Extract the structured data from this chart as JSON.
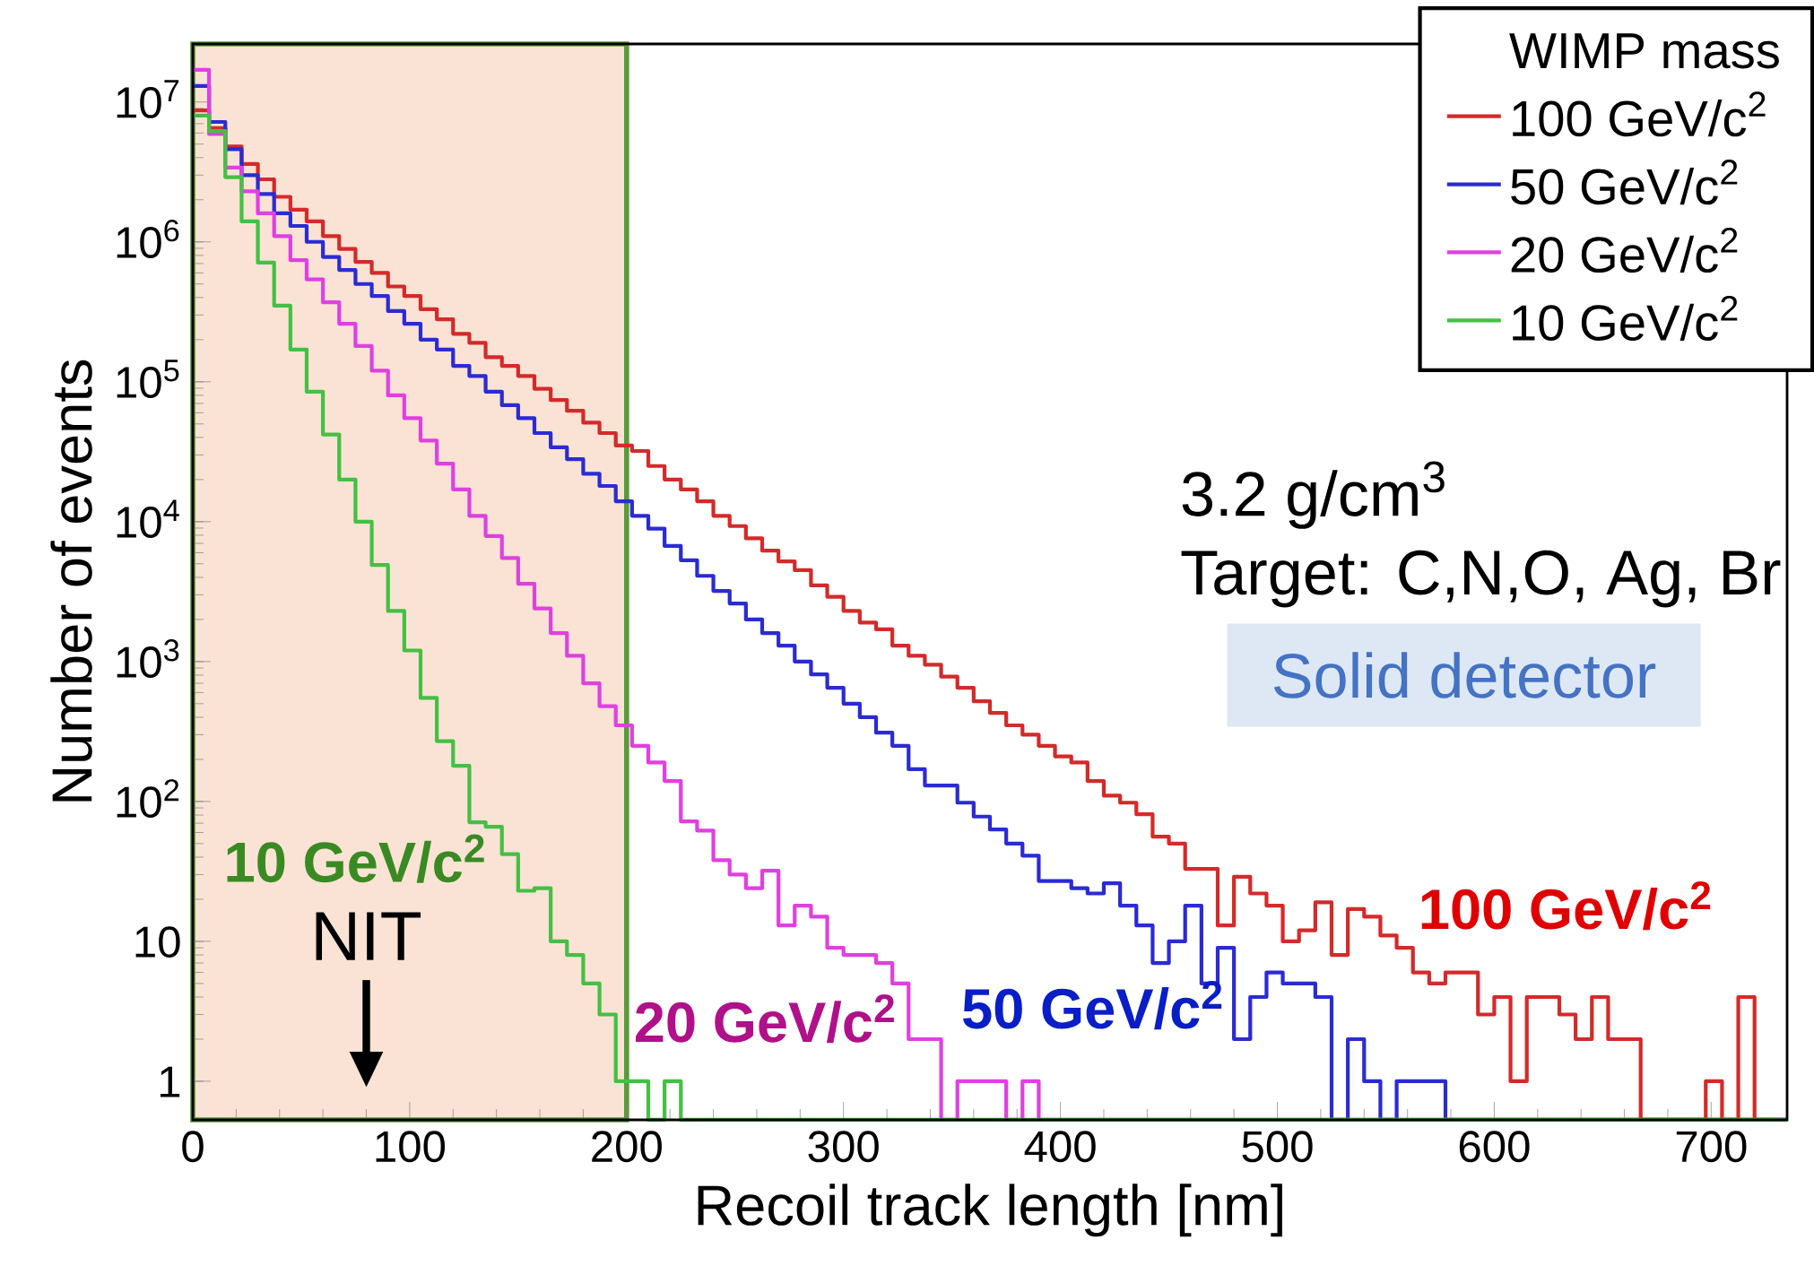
{
  "chart_data": {
    "type": "histogram",
    "xlabel": "Recoil track length [nm]",
    "ylabel": "Number of events",
    "legend_title": "WIMP mass",
    "legend": "top right",
    "log": "y",
    "xlim": [
      0,
      735
    ],
    "ylim": [
      0.53,
      26000000
    ],
    "xticks": [
      0,
      100,
      200,
      300,
      400,
      500,
      600,
      700
    ],
    "yticks": [
      1,
      10,
      {
        "value": 100,
        "label": "10$^{2}$"
      },
      {
        "value": 1000,
        "label": "10$^{3}$"
      },
      {
        "value": 10000,
        "label": "10$^{4}$"
      },
      {
        "value": 100000,
        "label": "10$^{5}$"
      },
      {
        "value": 1000000,
        "label": "10$^{6}$"
      },
      {
        "value": 10000000,
        "label": "10$^{7}$"
      }
    ],
    "bins": [
      0,
      7.5,
      15,
      22.5,
      30,
      37.5,
      45,
      52.5,
      60,
      67.5,
      75,
      82.5,
      90,
      97.5,
      105,
      112.5,
      120,
      127.5,
      135,
      142.5,
      150,
      157.5,
      165,
      172.5,
      180,
      187.5,
      195,
      202.5,
      210,
      217.5,
      225,
      232.5,
      240,
      247.5,
      255,
      262.5,
      270,
      277.5,
      285,
      292.5,
      300,
      307.5,
      315,
      322.5,
      330,
      337.5,
      345,
      352.5,
      360,
      367.5,
      375,
      382.5,
      390,
      397.5,
      405,
      412.5,
      420,
      427.5,
      435,
      442.5,
      450,
      457.5,
      465,
      472.5,
      480,
      487.5,
      495,
      502.5,
      510,
      517.5,
      525,
      532.5,
      540,
      547.5,
      555,
      562.5,
      570,
      577.5,
      585,
      592.5,
      600,
      607.5,
      615,
      622.5,
      630,
      637.5,
      645,
      652.5,
      660,
      667.5,
      675,
      682.5,
      690,
      697.5,
      705,
      712.5,
      720,
      727.5,
      735
    ],
    "series": [
      {
        "name": "100 GeV/c$^{2}$",
        "color": "#d42a2a",
        "values": [
          8700000,
          6500000,
          4800000,
          3600000,
          2800000,
          2100000,
          1700000,
          1400000,
          1100000,
          890000,
          720000,
          600000,
          480000,
          410000,
          330000,
          280000,
          220000,
          190000,
          150000,
          130000,
          110000,
          89000,
          74000,
          62000,
          51000,
          43000,
          35000,
          32000,
          25000,
          20000,
          17000,
          14000,
          11000,
          9300,
          7600,
          6200,
          5200,
          4500,
          3500,
          2900,
          2300,
          1900,
          1700,
          1300,
          1100,
          950,
          780,
          650,
          520,
          430,
          350,
          300,
          250,
          210,
          190,
          140,
          110,
          98,
          81,
          56,
          50,
          33,
          33,
          13,
          29,
          22,
          18,
          10,
          12,
          19,
          8,
          17,
          15,
          11,
          9,
          6,
          5,
          6,
          6,
          3,
          4,
          1,
          4,
          4,
          3,
          2,
          4,
          2,
          2,
          null,
          null,
          null,
          null,
          1,
          null,
          4,
          null,
          null
        ]
      },
      {
        "name": "50 GeV/c$^{2}$",
        "color": "#2b2bd4",
        "values": [
          13000000,
          7200000,
          4600000,
          3000000,
          2200000,
          1600000,
          1300000,
          1000000,
          780000,
          630000,
          500000,
          410000,
          320000,
          260000,
          200000,
          170000,
          130000,
          110000,
          85000,
          68000,
          55000,
          43000,
          34000,
          28000,
          22000,
          18000,
          14000,
          11000,
          8900,
          6700,
          5300,
          4100,
          3200,
          2600,
          2000,
          1600,
          1300,
          1000,
          810,
          650,
          500,
          400,
          310,
          250,
          170,
          130,
          130,
          98,
          78,
          63,
          50,
          41,
          27,
          27,
          24,
          22,
          26,
          18,
          13,
          7,
          10,
          18,
          5,
          9,
          2,
          4,
          6,
          5,
          5,
          4,
          null,
          2,
          1,
          null,
          1,
          1,
          1,
          null,
          null,
          null,
          null,
          null,
          null,
          null,
          null,
          null,
          null,
          null,
          null,
          null,
          null,
          null,
          null,
          null,
          null,
          null,
          null,
          null
        ]
      },
      {
        "name": "20 GeV/c$^{2}$",
        "color": "#e040e0",
        "values": [
          17000000,
          5900000,
          3400000,
          2300000,
          1600000,
          1100000,
          740000,
          540000,
          370000,
          260000,
          180000,
          120000,
          80000,
          55000,
          38000,
          26000,
          17000,
          11000,
          7900,
          5500,
          3600,
          2400,
          1600,
          1100,
          700,
          480,
          350,
          250,
          190,
          140,
          72,
          62,
          38,
          30,
          24,
          32,
          13,
          18,
          15,
          9,
          8,
          8,
          7,
          5,
          2,
          2,
          null,
          1,
          1,
          1,
          null,
          1,
          null,
          null,
          null,
          null,
          null,
          null,
          null,
          null,
          null,
          null,
          null,
          null,
          null,
          null,
          null,
          null,
          null,
          null,
          null,
          null,
          null,
          null,
          null,
          null,
          null,
          null,
          null,
          null,
          null,
          null,
          null,
          null,
          null,
          null,
          null,
          null,
          null,
          null,
          null,
          null,
          null,
          null,
          null,
          null,
          null,
          null
        ]
      },
      {
        "name": "10 GeV/c$^{2}$",
        "color": "#44c044",
        "values": [
          8000000,
          6200000,
          2900000,
          1400000,
          710000,
          350000,
          170000,
          85000,
          42000,
          20000,
          10000,
          4900,
          2300,
          1200,
          550,
          270,
          180,
          71,
          66,
          42,
          23,
          24,
          10,
          8,
          5,
          3,
          1,
          1,
          null,
          1,
          null,
          null,
          null,
          null,
          null,
          null,
          null,
          null,
          null,
          null,
          null,
          null,
          null,
          null,
          null,
          null,
          null,
          null,
          null,
          null,
          null,
          null,
          null,
          null,
          null,
          null,
          null,
          null,
          null,
          null,
          null,
          null,
          null,
          null,
          null,
          null,
          null,
          null,
          null,
          null,
          null,
          null,
          null,
          null,
          null,
          null,
          null,
          null,
          null,
          null,
          null,
          null,
          null,
          null,
          null,
          null,
          null,
          null,
          null,
          null,
          null,
          null,
          null,
          null,
          null,
          null,
          null,
          null
        ]
      }
    ],
    "bands": [
      {
        "axis": "x",
        "from": 0,
        "to": 200,
        "color": "#fae3d4"
      }
    ],
    "annotations": [
      "10 GeV/c$^{2}$",
      "20 GeV/c$^{2}$",
      "50 GeV/c$^{2}$",
      "100 GeV/c$^{2}$",
      "NIT",
      "3.2 g/cm$^{3}$",
      "Target: C,N,O, Ag, Br",
      "Solid detector"
    ]
  }
}
